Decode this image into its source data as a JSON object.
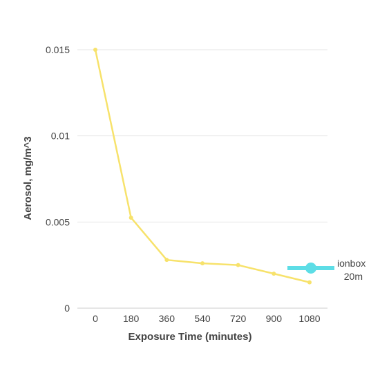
{
  "chart_data": {
    "type": "line",
    "x": [
      0,
      180,
      360,
      540,
      720,
      900,
      1080
    ],
    "xticks": [
      "0",
      "180",
      "360",
      "540",
      "720",
      "900",
      "1080"
    ],
    "series": [
      {
        "name": "ionbox 20m",
        "values": [
          0.015,
          0.00525,
          0.0028,
          0.0026,
          0.0025,
          0.002,
          0.0015
        ]
      }
    ],
    "yticks": [
      "0",
      "0.005",
      "0.01",
      "0.015"
    ],
    "ytick_values": [
      0,
      0.005,
      0.01,
      0.015
    ],
    "xlabel": "Exposure Time (minutes)",
    "ylabel": "Aerosol, mg/m^3",
    "ylim": [
      0,
      0.015
    ],
    "grid": true,
    "legend_position": "right",
    "legend_lines": [
      "ionbox",
      "20m"
    ],
    "colors": {
      "line": "#f7e26b",
      "legend_line": "#5ddde6",
      "grid": "#e6e6e6",
      "axis": "#cccccc",
      "text": "#444444"
    }
  }
}
